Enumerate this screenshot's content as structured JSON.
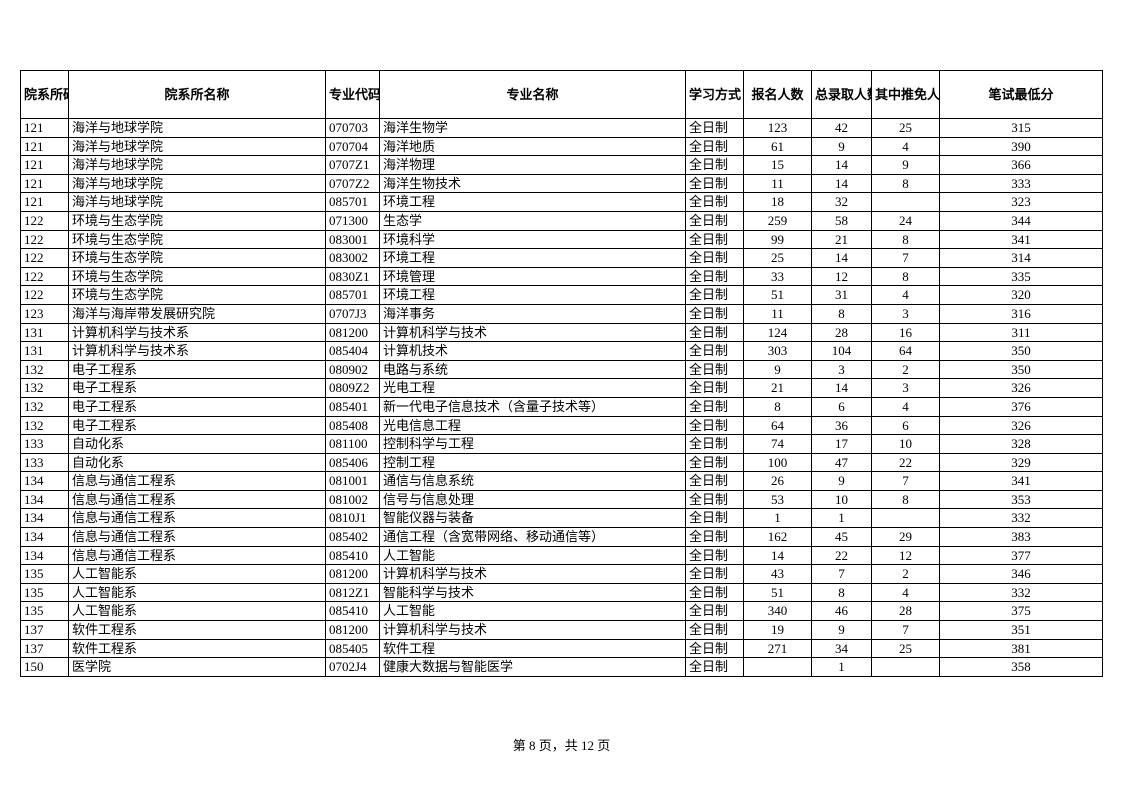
{
  "table": {
    "columns": [
      "院系所码",
      "院系所名称",
      "专业代码",
      "专业名称",
      "学习方式",
      "报名人数",
      "总录取人数",
      "其中推免人数",
      "笔试最低分"
    ],
    "rows": [
      [
        "121",
        "海洋与地球学院",
        "070703",
        "海洋生物学",
        "全日制",
        "123",
        "42",
        "25",
        "315"
      ],
      [
        "121",
        "海洋与地球学院",
        "070704",
        "海洋地质",
        "全日制",
        "61",
        "9",
        "4",
        "390"
      ],
      [
        "121",
        "海洋与地球学院",
        "0707Z1",
        "海洋物理",
        "全日制",
        "15",
        "14",
        "9",
        "366"
      ],
      [
        "121",
        "海洋与地球学院",
        "0707Z2",
        "海洋生物技术",
        "全日制",
        "11",
        "14",
        "8",
        "333"
      ],
      [
        "121",
        "海洋与地球学院",
        "085701",
        "环境工程",
        "全日制",
        "18",
        "32",
        "",
        "323"
      ],
      [
        "122",
        "环境与生态学院",
        "071300",
        "生态学",
        "全日制",
        "259",
        "58",
        "24",
        "344"
      ],
      [
        "122",
        "环境与生态学院",
        "083001",
        "环境科学",
        "全日制",
        "99",
        "21",
        "8",
        "341"
      ],
      [
        "122",
        "环境与生态学院",
        "083002",
        "环境工程",
        "全日制",
        "25",
        "14",
        "7",
        "314"
      ],
      [
        "122",
        "环境与生态学院",
        "0830Z1",
        "环境管理",
        "全日制",
        "33",
        "12",
        "8",
        "335"
      ],
      [
        "122",
        "环境与生态学院",
        "085701",
        "环境工程",
        "全日制",
        "51",
        "31",
        "4",
        "320"
      ],
      [
        "123",
        "海洋与海岸带发展研究院",
        "0707J3",
        "海洋事务",
        "全日制",
        "11",
        "8",
        "3",
        "316"
      ],
      [
        "131",
        "计算机科学与技术系",
        "081200",
        "计算机科学与技术",
        "全日制",
        "124",
        "28",
        "16",
        "311"
      ],
      [
        "131",
        "计算机科学与技术系",
        "085404",
        "计算机技术",
        "全日制",
        "303",
        "104",
        "64",
        "350"
      ],
      [
        "132",
        "电子工程系",
        "080902",
        "电路与系统",
        "全日制",
        "9",
        "3",
        "2",
        "350"
      ],
      [
        "132",
        "电子工程系",
        "0809Z2",
        "光电工程",
        "全日制",
        "21",
        "14",
        "3",
        "326"
      ],
      [
        "132",
        "电子工程系",
        "085401",
        "新一代电子信息技术（含量子技术等）",
        "全日制",
        "8",
        "6",
        "4",
        "376"
      ],
      [
        "132",
        "电子工程系",
        "085408",
        "光电信息工程",
        "全日制",
        "64",
        "36",
        "6",
        "326"
      ],
      [
        "133",
        "自动化系",
        "081100",
        "控制科学与工程",
        "全日制",
        "74",
        "17",
        "10",
        "328"
      ],
      [
        "133",
        "自动化系",
        "085406",
        "控制工程",
        "全日制",
        "100",
        "47",
        "22",
        "329"
      ],
      [
        "134",
        "信息与通信工程系",
        "081001",
        "通信与信息系统",
        "全日制",
        "26",
        "9",
        "7",
        "341"
      ],
      [
        "134",
        "信息与通信工程系",
        "081002",
        "信号与信息处理",
        "全日制",
        "53",
        "10",
        "8",
        "353"
      ],
      [
        "134",
        "信息与通信工程系",
        "0810J1",
        "智能仪器与装备",
        "全日制",
        "1",
        "1",
        "",
        "332"
      ],
      [
        "134",
        "信息与通信工程系",
        "085402",
        "通信工程（含宽带网络、移动通信等）",
        "全日制",
        "162",
        "45",
        "29",
        "383"
      ],
      [
        "134",
        "信息与通信工程系",
        "085410",
        "人工智能",
        "全日制",
        "14",
        "22",
        "12",
        "377"
      ],
      [
        "135",
        "人工智能系",
        "081200",
        "计算机科学与技术",
        "全日制",
        "43",
        "7",
        "2",
        "346"
      ],
      [
        "135",
        "人工智能系",
        "0812Z1",
        "智能科学与技术",
        "全日制",
        "51",
        "8",
        "4",
        "332"
      ],
      [
        "135",
        "人工智能系",
        "085410",
        "人工智能",
        "全日制",
        "340",
        "46",
        "28",
        "375"
      ],
      [
        "137",
        "软件工程系",
        "081200",
        "计算机科学与技术",
        "全日制",
        "19",
        "9",
        "7",
        "351"
      ],
      [
        "137",
        "软件工程系",
        "085405",
        "软件工程",
        "全日制",
        "271",
        "34",
        "25",
        "381"
      ],
      [
        "150",
        "医学院",
        "0702J4",
        "健康大数据与智能医学",
        "全日制",
        "",
        "1",
        "",
        "358"
      ]
    ],
    "col_align": [
      "left",
      "left",
      "left",
      "left",
      "left",
      "center",
      "center",
      "center",
      "center"
    ]
  },
  "pager": "第 8 页，共 12 页"
}
